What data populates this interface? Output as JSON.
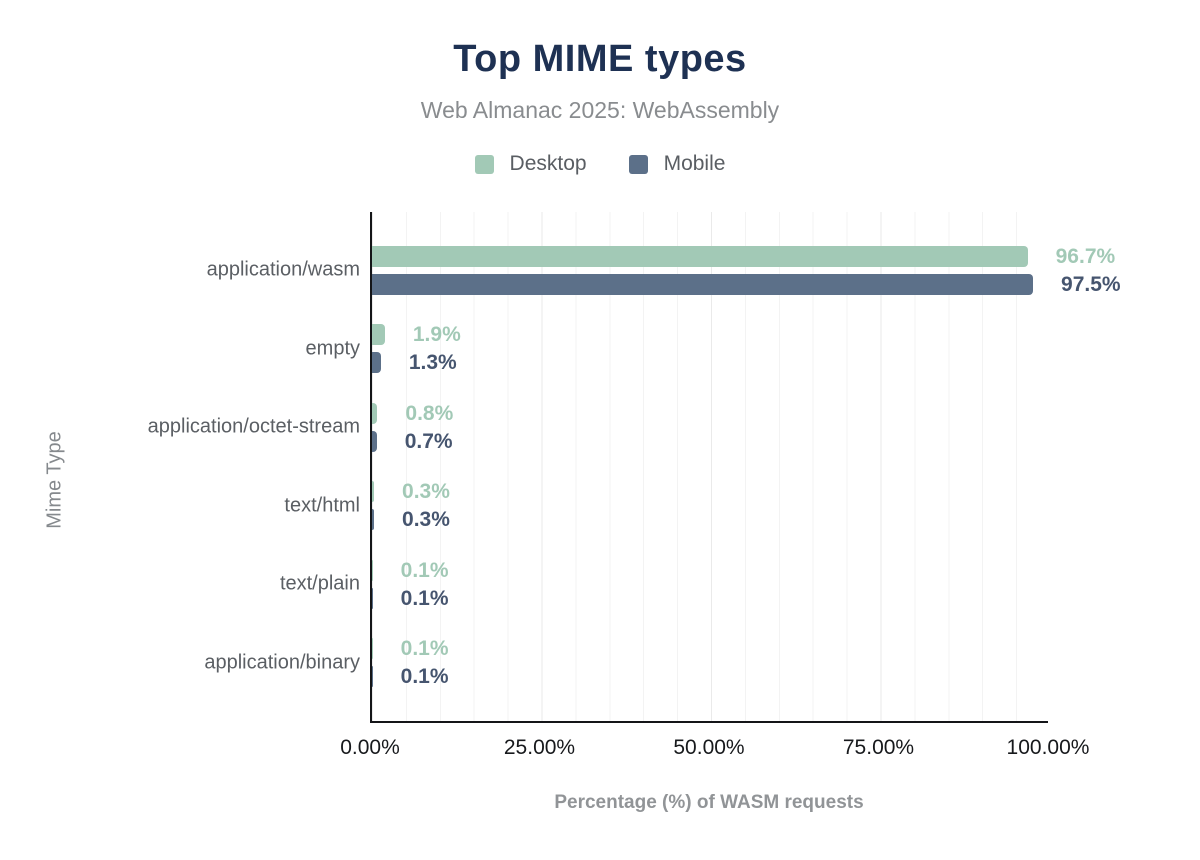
{
  "chart_data": {
    "type": "bar",
    "orientation": "horizontal",
    "title": "Top MIME types",
    "subtitle": "Web Almanac 2025: WebAssembly",
    "xlabel": "Percentage (%) of WASM requests",
    "ylabel": "Mime Type",
    "xlim": [
      0,
      100
    ],
    "x_ticks": [
      {
        "label": "0.00%",
        "value": 0
      },
      {
        "label": "25.00%",
        "value": 25
      },
      {
        "label": "50.00%",
        "value": 50
      },
      {
        "label": "75.00%",
        "value": 75
      },
      {
        "label": "100.00%",
        "value": 100
      }
    ],
    "grid": {
      "minor_step_pct": 5,
      "major_step_pct": 25,
      "minor_color": "#f3f3f3",
      "major_color": "#eaeaea"
    },
    "legend_position": "top",
    "categories": [
      "application/wasm",
      "empty",
      "application/octet-stream",
      "text/html",
      "text/plain",
      "application/binary"
    ],
    "series": [
      {
        "name": "Desktop",
        "bar_color": "#a2c9b6",
        "label_color": "#a2c9b6",
        "values": [
          96.7,
          1.9,
          0.8,
          0.3,
          0.1,
          0.1
        ],
        "labels": [
          "96.7%",
          "1.9%",
          "0.8%",
          "0.3%",
          "0.1%",
          "0.1%"
        ]
      },
      {
        "name": "Mobile",
        "bar_color": "#5c7089",
        "label_color": "#46556f",
        "values": [
          97.5,
          1.3,
          0.7,
          0.3,
          0.1,
          0.1
        ],
        "labels": [
          "97.5%",
          "1.3%",
          "0.7%",
          "0.3%",
          "0.1%",
          "0.1%"
        ]
      }
    ],
    "colors": {
      "title": "#1e3153",
      "subtitle": "#898c8f",
      "axis_line": "#141518",
      "tick_label": "#17191c",
      "category_label": "#5b5f64",
      "axis_title": "#919497"
    }
  }
}
